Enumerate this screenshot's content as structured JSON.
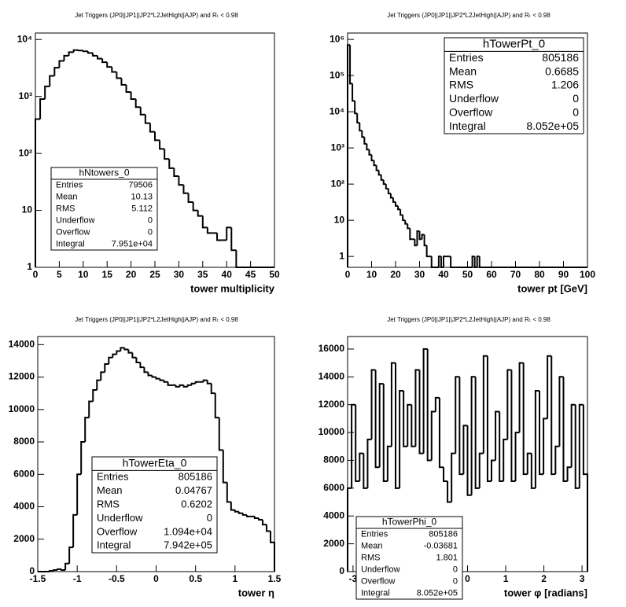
{
  "chart_data": [
    {
      "type": "histogram",
      "title": "Jet Triggers (JP0||JP1||JP2*L2JetHigh||AJP) and Rₜ < 0.98",
      "xlabel": "tower multiplicity",
      "color": "#000000",
      "log_y": true,
      "bins": [
        0,
        1,
        2,
        3,
        4,
        5,
        6,
        7,
        8,
        9,
        10,
        11,
        12,
        13,
        14,
        15,
        16,
        17,
        18,
        19,
        20,
        21,
        22,
        23,
        24,
        25,
        26,
        27,
        28,
        29,
        30,
        31,
        32,
        33,
        34,
        35,
        36,
        37,
        38,
        39,
        40,
        41,
        42,
        43,
        44,
        45,
        46,
        47,
        48,
        49,
        50
      ],
      "counts": [
        400,
        900,
        1500,
        2300,
        3200,
        4200,
        5200,
        6000,
        6500,
        6400,
        6200,
        5800,
        5200,
        4600,
        4000,
        3300,
        2700,
        2100,
        1600,
        1200,
        900,
        650,
        480,
        340,
        240,
        170,
        120,
        80,
        55,
        40,
        28,
        20,
        14,
        10,
        8,
        5,
        4,
        4,
        3,
        3,
        5,
        2,
        1,
        0,
        1,
        0,
        0,
        0,
        0,
        0
      ],
      "xlim": [
        0,
        50
      ],
      "xticks": [
        0,
        5,
        10,
        15,
        20,
        25,
        30,
        35,
        40,
        45,
        50
      ],
      "ylim": [
        1,
        13000
      ],
      "yticks": [
        1,
        10,
        {
          "value": 100,
          "label": "10²"
        },
        {
          "value": 1000,
          "label": "10³"
        },
        {
          "value": 10000,
          "label": "10⁴"
        }
      ],
      "stats": {
        "title": "hNtowers_0",
        "rows": [
          [
            "Entries",
            "79506"
          ],
          [
            "Mean",
            "10.13"
          ],
          [
            "RMS",
            "5.112"
          ],
          [
            "Underflow",
            "0"
          ],
          [
            "Overflow",
            "0"
          ],
          [
            "Integral",
            "7.951e+04"
          ]
        ]
      }
    },
    {
      "type": "histogram",
      "title": "Jet Triggers (JP0||JP1||JP2*L2JetHigh||AJP) and Rₜ < 0.98",
      "xlabel": "tower pt [GeV]",
      "color": "#000000",
      "log_y": true,
      "bins": [
        0,
        1,
        2,
        3,
        4,
        5,
        6,
        7,
        8,
        9,
        10,
        11,
        12,
        13,
        14,
        15,
        16,
        17,
        18,
        19,
        20,
        21,
        22,
        23,
        24,
        25,
        26,
        27,
        28,
        29,
        30,
        31,
        32,
        33,
        34,
        35,
        36,
        37,
        38,
        39,
        40,
        41,
        42,
        43,
        44,
        45,
        46,
        47,
        48,
        49,
        50,
        51,
        52,
        53,
        54,
        55,
        56,
        57,
        58,
        59,
        60,
        61,
        62,
        63,
        64,
        65,
        66,
        67,
        68,
        69,
        70,
        71,
        72,
        73,
        74,
        75,
        76,
        77,
        78,
        79,
        80,
        81,
        82,
        83,
        84,
        85,
        86,
        87,
        88,
        89,
        90,
        91,
        92,
        93,
        94,
        95,
        96,
        97,
        98,
        99,
        100
      ],
      "counts": [
        700000,
        60000,
        20000,
        9000,
        5000,
        3000,
        2000,
        1300,
        900,
        650,
        450,
        330,
        240,
        180,
        130,
        100,
        75,
        55,
        42,
        32,
        25,
        20,
        14,
        10,
        8,
        6,
        3,
        3,
        2,
        5,
        3,
        4,
        2,
        1,
        1,
        0,
        0,
        0,
        1,
        0,
        1,
        1,
        1,
        0,
        0,
        0,
        0,
        0,
        0,
        0,
        0,
        0,
        1,
        0,
        1,
        0,
        0,
        0,
        0,
        0,
        0,
        0,
        0,
        0,
        0,
        0,
        0,
        0,
        0,
        0,
        0,
        0,
        0,
        0,
        0,
        0,
        0,
        0,
        0,
        0,
        0,
        0,
        0,
        0,
        0,
        0,
        0,
        0,
        0,
        0,
        0,
        0,
        0,
        0,
        0,
        0,
        0,
        0,
        0,
        0
      ],
      "xlim": [
        0,
        100
      ],
      "xticks": [
        0,
        10,
        20,
        30,
        40,
        50,
        60,
        70,
        80,
        90,
        100
      ],
      "ylim": [
        0.5,
        1500000
      ],
      "yticks": [
        1,
        10,
        {
          "value": 100,
          "label": "10²"
        },
        {
          "value": 1000,
          "label": "10³"
        },
        {
          "value": 10000,
          "label": "10⁴"
        },
        {
          "value": 100000,
          "label": "10⁵"
        },
        {
          "value": 1000000,
          "label": "10⁶"
        }
      ],
      "stats": {
        "title": "hTowerPt_0",
        "rows": [
          [
            "Entries",
            "805186"
          ],
          [
            "Mean",
            "0.6685"
          ],
          [
            "RMS",
            "1.206"
          ],
          [
            "Underflow",
            "0"
          ],
          [
            "Overflow",
            "0"
          ],
          [
            "Integral",
            "8.052e+05"
          ]
        ]
      }
    },
    {
      "type": "histogram",
      "title": "Jet Triggers (JP0||JP1||JP2*L2JetHigh||AJP) and Rₜ < 0.98",
      "xlabel": "tower η",
      "color": "#000000",
      "log_y": false,
      "bins": [
        -1.5,
        -1.45,
        -1.4,
        -1.35,
        -1.3,
        -1.25,
        -1.2,
        -1.15,
        -1.1,
        -1.05,
        -1,
        -0.95,
        -0.9,
        -0.85,
        -0.8,
        -0.75,
        -0.7,
        -0.65,
        -0.6,
        -0.55,
        -0.5,
        -0.45,
        -0.4,
        -0.35,
        -0.3,
        -0.25,
        -0.2,
        -0.15,
        -0.1,
        -0.05,
        0,
        0.05,
        0.1,
        0.15,
        0.2,
        0.25,
        0.3,
        0.35,
        0.4,
        0.45,
        0.5,
        0.55,
        0.6,
        0.65,
        0.7,
        0.75,
        0.8,
        0.85,
        0.9,
        0.95,
        1,
        1.05,
        1.1,
        1.15,
        1.2,
        1.25,
        1.3,
        1.35,
        1.4,
        1.45,
        1.5
      ],
      "counts": [
        0,
        0,
        0,
        50,
        100,
        150,
        100,
        500,
        1500,
        3500,
        6000,
        8000,
        9500,
        10500,
        11200,
        11800,
        12300,
        12800,
        13200,
        13400,
        13600,
        13800,
        13700,
        13500,
        13200,
        12900,
        12600,
        12300,
        12100,
        12000,
        11900,
        11800,
        11700,
        11500,
        11500,
        11400,
        11500,
        11400,
        11500,
        11600,
        11700,
        11700,
        11800,
        11600,
        11000,
        9500,
        7500,
        5500,
        4300,
        3800,
        3700,
        3600,
        3500,
        3400,
        3400,
        3300,
        3200,
        2900,
        2500,
        1800
      ],
      "xlim": [
        -1.5,
        1.5
      ],
      "xticks": [
        -1.5,
        -1,
        -0.5,
        0,
        0.5,
        1,
        1.5
      ],
      "ylim": [
        0,
        14500
      ],
      "yticks": [
        0,
        2000,
        4000,
        6000,
        8000,
        10000,
        12000,
        14000
      ],
      "stats": {
        "title": "hTowerEta_0",
        "rows": [
          [
            "Entries",
            "805186"
          ],
          [
            "Mean",
            "0.04767"
          ],
          [
            "RMS",
            "0.6202"
          ],
          [
            "Underflow",
            "0"
          ],
          [
            "Overflow",
            "1.094e+04"
          ],
          [
            "Integral",
            "7.942e+05"
          ]
        ]
      }
    },
    {
      "type": "histogram",
      "title": "Jet Triggers (JP0||JP1||JP2*L2JetHigh||AJP) and Rₜ < 0.98",
      "xlabel": "tower φ [radians]",
      "color": "#000000",
      "log_y": false,
      "bins": [
        -3.142,
        -3.037,
        -2.932,
        -2.827,
        -2.723,
        -2.618,
        -2.513,
        -2.409,
        -2.304,
        -2.199,
        -2.094,
        -1.99,
        -1.885,
        -1.78,
        -1.676,
        -1.571,
        -1.466,
        -1.361,
        -1.257,
        -1.152,
        -1.047,
        -0.942,
        -0.838,
        -0.733,
        -0.628,
        -0.524,
        -0.419,
        -0.314,
        -0.209,
        -0.105,
        0,
        0.105,
        0.209,
        0.314,
        0.419,
        0.524,
        0.628,
        0.733,
        0.838,
        0.942,
        1.047,
        1.152,
        1.257,
        1.361,
        1.466,
        1.571,
        1.676,
        1.78,
        1.885,
        1.99,
        2.094,
        2.199,
        2.304,
        2.409,
        2.513,
        2.618,
        2.723,
        2.827,
        2.932,
        3.037,
        3.142
      ],
      "counts": [
        6000,
        12000,
        6500,
        8500,
        6000,
        9500,
        14500,
        7500,
        13500,
        6500,
        9000,
        15000,
        6000,
        13000,
        9000,
        12000,
        9000,
        14500,
        8500,
        16000,
        8000,
        11500,
        12500,
        7500,
        6500,
        5000,
        8500,
        14000,
        7000,
        10500,
        5500,
        14000,
        6000,
        8500,
        15500,
        6500,
        8000,
        11500,
        6500,
        9500,
        14500,
        6500,
        10000,
        15000,
        7000,
        8500,
        6000,
        13000,
        7000,
        11000,
        15500,
        7000,
        9000,
        14000,
        6500,
        7500,
        12000,
        6000,
        12000,
        7000
      ],
      "xlim": [
        -3.142,
        3.142
      ],
      "xticks": [
        -3,
        -2,
        -1,
        0,
        1,
        2,
        3
      ],
      "ylim": [
        0,
        16900
      ],
      "yticks": [
        0,
        2000,
        4000,
        6000,
        8000,
        10000,
        12000,
        14000,
        16000
      ],
      "stats": {
        "title": "hTowerPhi_0",
        "rows": [
          [
            "Entries",
            "805186"
          ],
          [
            "Mean",
            "-0.03681"
          ],
          [
            "RMS",
            "1.801"
          ],
          [
            "Underflow",
            "0"
          ],
          [
            "Overflow",
            "0"
          ],
          [
            "Integral",
            "8.052e+05"
          ]
        ]
      }
    }
  ]
}
